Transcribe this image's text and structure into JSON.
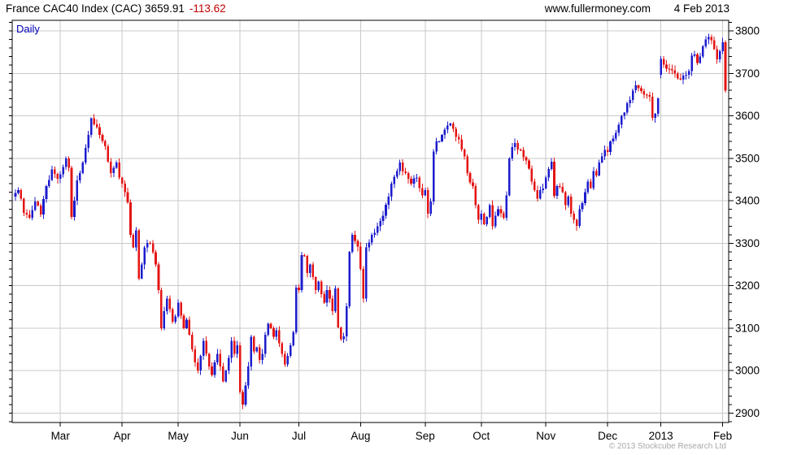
{
  "header": {
    "title_main": "France CAC40 Index (CAC) 3659.91",
    "title_change": "-113.62",
    "site": "www.fullermoney.com",
    "date": "4 Feb 2013"
  },
  "footer": {
    "copyright": "© 2013 Stockcube Research Ltd"
  },
  "chart_data": {
    "type": "candlestick",
    "instrument": "France CAC40 Index (CAC)",
    "timeframe_label": "Daily",
    "last_close": 3659.91,
    "change": -113.62,
    "num_days": 254,
    "ylim": [
      2878,
      3825
    ],
    "y_ticks": [
      2900,
      3000,
      3100,
      3200,
      3300,
      3400,
      3500,
      3600,
      3700,
      3800
    ],
    "y_minor_step": 20,
    "grid": true,
    "x_ticks": [
      {
        "label": "Mar",
        "day": 16
      },
      {
        "label": "Apr",
        "day": 38
      },
      {
        "label": "May",
        "day": 58
      },
      {
        "label": "Jun",
        "day": 80
      },
      {
        "label": "Jul",
        "day": 101
      },
      {
        "label": "Aug",
        "day": 123
      },
      {
        "label": "Sep",
        "day": 146
      },
      {
        "label": "Oct",
        "day": 166
      },
      {
        "label": "Nov",
        "day": 189
      },
      {
        "label": "Dec",
        "day": 211
      },
      {
        "label": "2013",
        "day": 230
      },
      {
        "label": "Feb",
        "day": 252
      }
    ],
    "colors": {
      "up": "#1c1ccd",
      "down": "#e41414",
      "grid": "#c9c9c9",
      "axis": "#000000"
    },
    "anchors": [
      [
        0,
        3418
      ],
      [
        1,
        3425
      ],
      [
        2,
        3405
      ],
      [
        3,
        3372
      ],
      [
        5,
        3360
      ],
      [
        7,
        3398
      ],
      [
        9,
        3368
      ],
      [
        11,
        3435
      ],
      [
        13,
        3474
      ],
      [
        15,
        3452
      ],
      [
        16,
        3462
      ],
      [
        17,
        3480
      ],
      [
        18,
        3500
      ],
      [
        19,
        3478
      ],
      [
        20,
        3362
      ],
      [
        21,
        3400
      ],
      [
        22,
        3448
      ],
      [
        24,
        3490
      ],
      [
        26,
        3555
      ],
      [
        27,
        3594
      ],
      [
        28,
        3580
      ],
      [
        30,
        3555
      ],
      [
        32,
        3528
      ],
      [
        34,
        3465
      ],
      [
        35,
        3478
      ],
      [
        36,
        3490
      ],
      [
        37,
        3455
      ],
      [
        38,
        3440
      ],
      [
        39,
        3420
      ],
      [
        40,
        3396
      ],
      [
        41,
        3320
      ],
      [
        42,
        3290
      ],
      [
        43,
        3330
      ],
      [
        44,
        3217
      ],
      [
        45,
        3250
      ],
      [
        46,
        3290
      ],
      [
        48,
        3300
      ],
      [
        50,
        3250
      ],
      [
        51,
        3190
      ],
      [
        52,
        3100
      ],
      [
        53,
        3140
      ],
      [
        54,
        3170
      ],
      [
        55,
        3145
      ],
      [
        56,
        3115
      ],
      [
        57,
        3128
      ],
      [
        58,
        3160
      ],
      [
        59,
        3130
      ],
      [
        60,
        3100
      ],
      [
        61,
        3120
      ],
      [
        62,
        3085
      ],
      [
        63,
        3050
      ],
      [
        64,
        3020
      ],
      [
        65,
        3000
      ],
      [
        66,
        3035
      ],
      [
        67,
        3070
      ],
      [
        68,
        3040
      ],
      [
        69,
        3010
      ],
      [
        70,
        2990
      ],
      [
        71,
        3020
      ],
      [
        72,
        3040
      ],
      [
        73,
        3010
      ],
      [
        74,
        2975
      ],
      [
        75,
        3000
      ],
      [
        76,
        3030
      ],
      [
        77,
        3070
      ],
      [
        78,
        3040
      ],
      [
        79,
        3060
      ],
      [
        80,
        2950
      ],
      [
        81,
        2920
      ],
      [
        82,
        2965
      ],
      [
        83,
        3010
      ],
      [
        84,
        3080
      ],
      [
        85,
        3045
      ],
      [
        86,
        3055
      ],
      [
        87,
        3025
      ],
      [
        88,
        3040
      ],
      [
        89,
        3085
      ],
      [
        90,
        3110
      ],
      [
        91,
        3100
      ],
      [
        92,
        3080
      ],
      [
        93,
        3095
      ],
      [
        94,
        3065
      ],
      [
        95,
        3040
      ],
      [
        96,
        3015
      ],
      [
        97,
        3035
      ],
      [
        98,
        3060
      ],
      [
        99,
        3090
      ],
      [
        100,
        3196
      ],
      [
        101,
        3190
      ],
      [
        102,
        3272
      ],
      [
        103,
        3270
      ],
      [
        104,
        3230
      ],
      [
        105,
        3250
      ],
      [
        106,
        3220
      ],
      [
        107,
        3190
      ],
      [
        108,
        3210
      ],
      [
        109,
        3180
      ],
      [
        110,
        3160
      ],
      [
        111,
        3190
      ],
      [
        112,
        3170
      ],
      [
        113,
        3140
      ],
      [
        114,
        3194
      ],
      [
        115,
        3102
      ],
      [
        116,
        3074
      ],
      [
        117,
        3081
      ],
      [
        118,
        3152
      ],
      [
        119,
        3280
      ],
      [
        120,
        3320
      ],
      [
        121,
        3306
      ],
      [
        122,
        3292
      ],
      [
        123,
        3240
      ],
      [
        124,
        3170
      ],
      [
        125,
        3290
      ],
      [
        127,
        3320
      ],
      [
        129,
        3340
      ],
      [
        131,
        3365
      ],
      [
        133,
        3410
      ],
      [
        134,
        3440
      ],
      [
        136,
        3470
      ],
      [
        137,
        3490
      ],
      [
        139,
        3465
      ],
      [
        141,
        3440
      ],
      [
        143,
        3455
      ],
      [
        144,
        3430
      ],
      [
        145,
        3413
      ],
      [
        146,
        3425
      ],
      [
        147,
        3370
      ],
      [
        148,
        3398
      ],
      [
        149,
        3516
      ],
      [
        150,
        3540
      ],
      [
        152,
        3555
      ],
      [
        154,
        3577
      ],
      [
        155,
        3582
      ],
      [
        156,
        3570
      ],
      [
        158,
        3545
      ],
      [
        160,
        3505
      ],
      [
        161,
        3465
      ],
      [
        163,
        3435
      ],
      [
        164,
        3390
      ],
      [
        165,
        3355
      ],
      [
        166,
        3370
      ],
      [
        167,
        3345
      ],
      [
        169,
        3390
      ],
      [
        170,
        3340
      ],
      [
        172,
        3380
      ],
      [
        174,
        3360
      ],
      [
        175,
        3413
      ],
      [
        176,
        3500
      ],
      [
        177,
        3527
      ],
      [
        178,
        3536
      ],
      [
        180,
        3520
      ],
      [
        182,
        3495
      ],
      [
        184,
        3445
      ],
      [
        186,
        3405
      ],
      [
        187,
        3425
      ],
      [
        188,
        3429
      ],
      [
        189,
        3455
      ],
      [
        190,
        3475
      ],
      [
        191,
        3492
      ],
      [
        192,
        3412
      ],
      [
        193,
        3435
      ],
      [
        195,
        3420
      ],
      [
        196,
        3390
      ],
      [
        197,
        3410
      ],
      [
        198,
        3370
      ],
      [
        199,
        3355
      ],
      [
        200,
        3341
      ],
      [
        201,
        3380
      ],
      [
        202,
        3395
      ],
      [
        203,
        3420
      ],
      [
        204,
        3445
      ],
      [
        205,
        3430
      ],
      [
        206,
        3470
      ],
      [
        207,
        3460
      ],
      [
        208,
        3490
      ],
      [
        209,
        3505
      ],
      [
        210,
        3520
      ],
      [
        211,
        3515
      ],
      [
        212,
        3540
      ],
      [
        214,
        3560
      ],
      [
        216,
        3600
      ],
      [
        218,
        3630
      ],
      [
        220,
        3660
      ],
      [
        221,
        3672
      ],
      [
        222,
        3665
      ],
      [
        224,
        3650
      ],
      [
        226,
        3645
      ],
      [
        227,
        3595
      ],
      [
        228,
        3605
      ],
      [
        229,
        3641
      ],
      [
        230,
        3734
      ],
      [
        231,
        3721
      ],
      [
        233,
        3710
      ],
      [
        235,
        3700
      ],
      [
        237,
        3685
      ],
      [
        238,
        3695
      ],
      [
        240,
        3705
      ],
      [
        241,
        3742
      ],
      [
        242,
        3745
      ],
      [
        243,
        3725
      ],
      [
        244,
        3740
      ],
      [
        245,
        3764
      ],
      [
        246,
        3780
      ],
      [
        247,
        3786
      ],
      [
        248,
        3778
      ],
      [
        249,
        3757
      ],
      [
        250,
        3733
      ],
      [
        251,
        3752
      ],
      [
        252,
        3773.53
      ],
      [
        253,
        3659.91
      ]
    ],
    "special": {
      "first_open": 3410,
      "gap_open_day": 230,
      "gap_open": 3697,
      "year_low_day": 81,
      "year_low": 2915,
      "year_high_day": 247,
      "year_high": 3792,
      "last_candle": {
        "open": 3773.53,
        "high": 3778,
        "low": 3655,
        "close": 3659.91
      }
    }
  }
}
